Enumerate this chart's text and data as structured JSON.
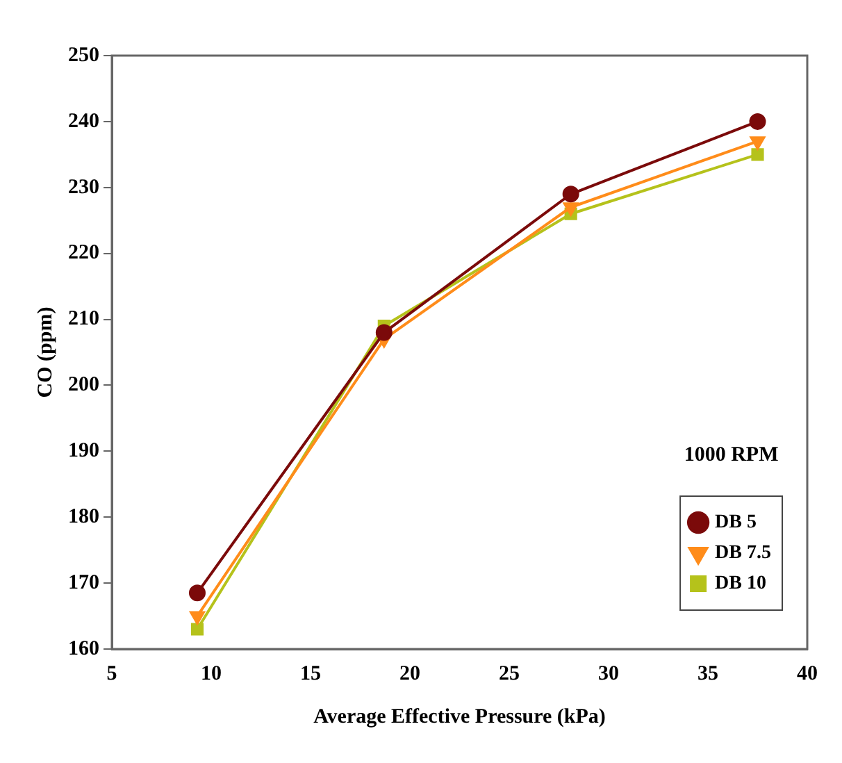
{
  "chart_data": {
    "type": "line",
    "xlabel": "Average Effective Pressure (kPa)",
    "ylabel": "CO (ppm)",
    "annotations": [
      "1000 RPM"
    ],
    "x": [
      9.3,
      18.7,
      28.1,
      37.5
    ],
    "series": [
      {
        "name": "DB 5",
        "color": "#7b0a0a",
        "marker": "circle",
        "values": [
          168.5,
          208,
          229,
          240
        ]
      },
      {
        "name": "DB 7.5",
        "color": "#ff8c1a",
        "marker": "triangle",
        "values": [
          165,
          207,
          227,
          237
        ]
      },
      {
        "name": "DB 10",
        "color": "#b5c21b",
        "marker": "square",
        "values": [
          163,
          209,
          226,
          235
        ]
      }
    ],
    "xlim": [
      5,
      40
    ],
    "xticks": [
      5,
      10,
      15,
      20,
      25,
      30,
      35,
      40
    ],
    "ylim": [
      160,
      250
    ],
    "yticks": [
      160,
      170,
      180,
      190,
      200,
      210,
      220,
      230,
      240,
      250
    ],
    "grid": false,
    "legend": "bottom right",
    "line_style": "solid"
  }
}
